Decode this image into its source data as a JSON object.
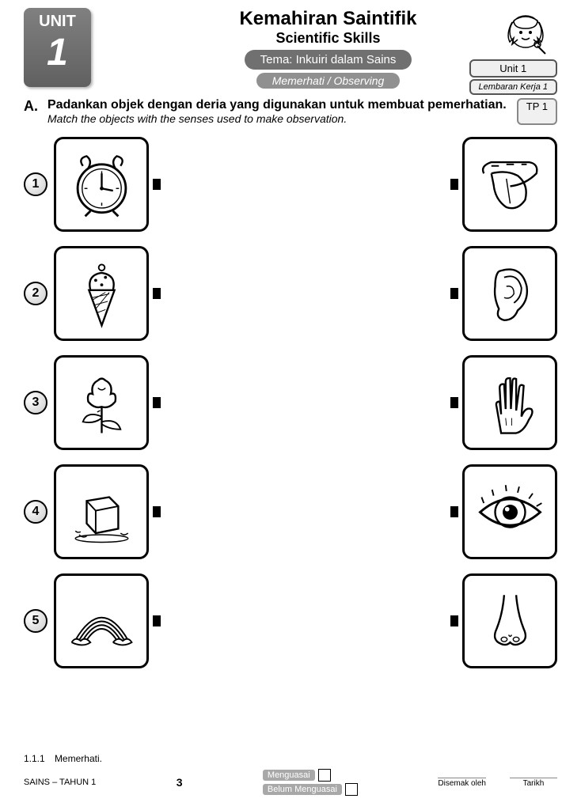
{
  "header": {
    "unit_label": "UNIT",
    "unit_number": "1",
    "title_main": "Kemahiran Saintifik",
    "title_sub": "Scientific Skills",
    "theme": "Tema: Inkuiri dalam Sains",
    "subtheme": "Memerhati / Observing",
    "right_unit": "Unit 1",
    "right_worksheet": "Lembaran Kerja 1",
    "tp": "TP 1"
  },
  "instruction": {
    "letter": "A.",
    "main": "Padankan objek dengan deria yang digunakan untuk membuat pemerhatian.",
    "sub": "Match the objects with the senses used to make observation."
  },
  "matching": {
    "left_items": [
      {
        "num": "1",
        "icon": "alarm-clock"
      },
      {
        "num": "2",
        "icon": "ice-cream"
      },
      {
        "num": "3",
        "icon": "rose"
      },
      {
        "num": "4",
        "icon": "ice-cube"
      },
      {
        "num": "5",
        "icon": "rainbow"
      }
    ],
    "right_items": [
      {
        "icon": "tongue"
      },
      {
        "icon": "ear"
      },
      {
        "icon": "hand"
      },
      {
        "icon": "eye"
      },
      {
        "icon": "nose"
      }
    ]
  },
  "footer": {
    "ref_code": "1.1.1",
    "ref_text": "Memerhati.",
    "page_num": "3",
    "subject": "SAINS – TAHUN 1",
    "check_pass": "Menguasai",
    "check_fail": "Belum Menguasai",
    "sig_checked": "Disemak oleh",
    "sig_date": "Tarikh"
  },
  "colors": {
    "badge_bg": "#707070",
    "border": "#000000",
    "page_bg": "#ffffff"
  }
}
